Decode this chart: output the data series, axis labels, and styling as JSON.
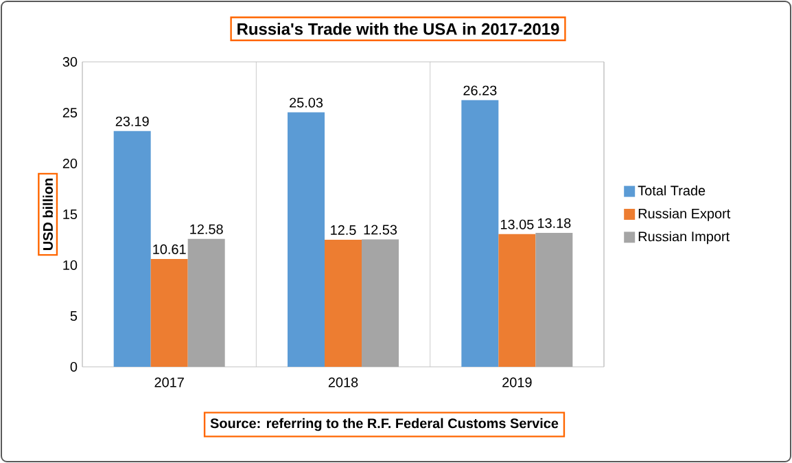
{
  "chart_data": {
    "type": "bar",
    "title": "Russia's Trade with the USA in 2017-2019",
    "ylabel": "USD billion",
    "categories": [
      "2017",
      "2018",
      "2019"
    ],
    "series": [
      {
        "name": "Total Trade",
        "color": "#5b9bd5",
        "values": [
          23.19,
          25.03,
          26.23
        ]
      },
      {
        "name": "Russian Export",
        "color": "#ed7d31",
        "values": [
          10.61,
          12.5,
          13.05
        ]
      },
      {
        "name": "Russian Import",
        "color": "#a5a5a5",
        "values": [
          12.58,
          12.53,
          13.18
        ]
      }
    ],
    "ylim": [
      0,
      30
    ],
    "yticks": [
      0,
      5,
      10,
      15,
      20,
      25,
      30
    ],
    "grid": "x",
    "legend": "right",
    "data_labels": true,
    "annotations": [
      "Source: referring to the R.F. Federal Customs Service"
    ]
  }
}
